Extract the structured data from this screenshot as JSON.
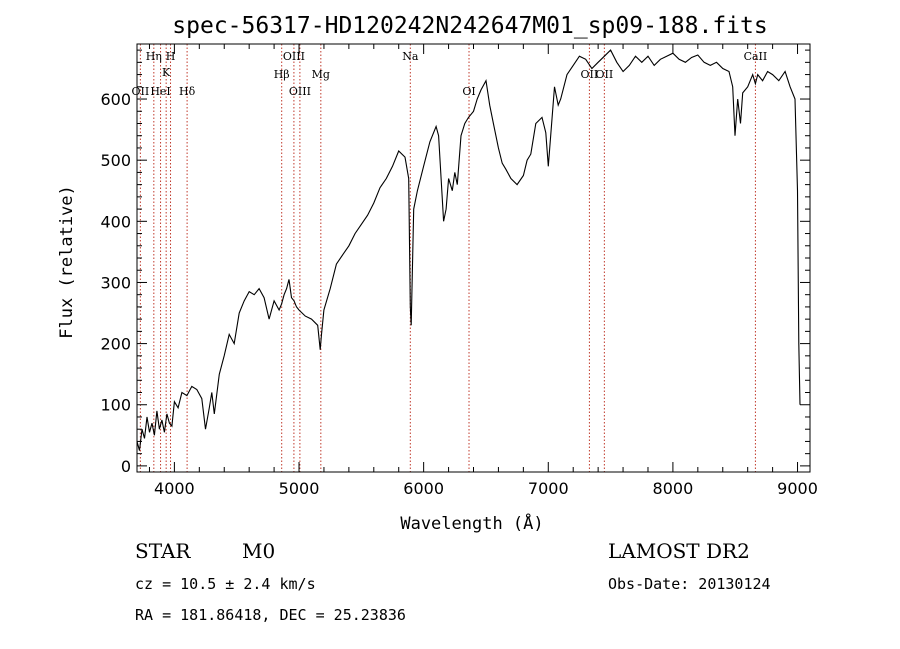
{
  "chart_data": {
    "type": "line",
    "title": "spec-56317-HD120242N242647M01_sp09-188.fits",
    "xlabel": "Wavelength (Å)",
    "ylabel": "Flux (relative)",
    "xlim": [
      3700,
      9100
    ],
    "ylim": [
      -10,
      690
    ],
    "x_ticks": [
      4000,
      5000,
      6000,
      7000,
      8000,
      9000
    ],
    "y_ticks": [
      0,
      100,
      200,
      300,
      400,
      500,
      600
    ],
    "series": [
      {
        "x": [
          3700,
          3720,
          3740,
          3760,
          3780,
          3800,
          3820,
          3840,
          3860,
          3880,
          3900,
          3920,
          3940,
          3960,
          3980,
          4000,
          4030,
          4060,
          4100,
          4140,
          4180,
          4220,
          4250,
          4280,
          4300,
          4320,
          4360,
          4400,
          4440,
          4480,
          4520,
          4560,
          4600,
          4640,
          4680,
          4720,
          4760,
          4800,
          4840,
          4860,
          4880,
          4900,
          4920,
          4940,
          4960,
          4980,
          5000,
          5050,
          5100,
          5150,
          5170,
          5180,
          5200,
          5250,
          5300,
          5350,
          5400,
          5450,
          5500,
          5550,
          5600,
          5650,
          5700,
          5750,
          5800,
          5850,
          5880,
          5893,
          5900,
          5920,
          5950,
          6000,
          6050,
          6100,
          6120,
          6140,
          6160,
          6180,
          6200,
          6230,
          6250,
          6270,
          6300,
          6330,
          6360,
          6400,
          6430,
          6460,
          6500,
          6530,
          6560,
          6600,
          6630,
          6660,
          6700,
          6750,
          6800,
          6830,
          6860,
          6900,
          6950,
          6980,
          7000,
          7050,
          7080,
          7100,
          7150,
          7200,
          7250,
          7300,
          7350,
          7400,
          7450,
          7500,
          7550,
          7600,
          7650,
          7700,
          7750,
          7800,
          7850,
          7900,
          7950,
          8000,
          8050,
          8100,
          8150,
          8200,
          8250,
          8300,
          8350,
          8400,
          8450,
          8480,
          8498,
          8520,
          8542,
          8560,
          8600,
          8640,
          8662,
          8680,
          8720,
          8760,
          8800,
          8850,
          8900,
          8940,
          8980,
          9000,
          9010,
          9020
        ],
        "values": [
          40,
          25,
          60,
          45,
          80,
          55,
          70,
          50,
          90,
          60,
          75,
          55,
          85,
          70,
          65,
          105,
          95,
          120,
          115,
          130,
          125,
          110,
          60,
          95,
          120,
          85,
          150,
          180,
          215,
          200,
          250,
          270,
          285,
          280,
          290,
          275,
          240,
          270,
          255,
          265,
          280,
          290,
          305,
          275,
          270,
          260,
          255,
          245,
          240,
          230,
          190,
          215,
          255,
          290,
          330,
          345,
          360,
          380,
          395,
          410,
          430,
          455,
          470,
          490,
          515,
          505,
          470,
          260,
          230,
          420,
          450,
          490,
          530,
          555,
          540,
          470,
          400,
          420,
          470,
          450,
          480,
          460,
          540,
          560,
          570,
          580,
          600,
          615,
          630,
          590,
          560,
          520,
          495,
          485,
          470,
          460,
          475,
          500,
          510,
          560,
          570,
          545,
          490,
          620,
          590,
          600,
          640,
          655,
          670,
          665,
          650,
          660,
          670,
          680,
          660,
          645,
          655,
          670,
          660,
          670,
          655,
          665,
          670,
          675,
          665,
          660,
          668,
          672,
          660,
          655,
          660,
          650,
          645,
          620,
          540,
          600,
          560,
          610,
          620,
          640,
          625,
          640,
          630,
          645,
          640,
          630,
          645,
          620,
          600,
          450,
          200,
          100
        ]
      }
    ],
    "lines": [
      {
        "label": "OII",
        "x": 3727,
        "row": 3
      },
      {
        "label": "Hη",
        "x": 3835,
        "row": 0
      },
      {
        "label": "HeI",
        "x": 3889,
        "row": 3
      },
      {
        "label": "K",
        "x": 3934,
        "row": 1
      },
      {
        "label": "H",
        "x": 3969,
        "row": 0
      },
      {
        "label": "Hδ",
        "x": 4102,
        "row": 3
      },
      {
        "label": "Hβ",
        "x": 4861,
        "row": 2
      },
      {
        "label": "OIII",
        "x": 4959,
        "row": 0
      },
      {
        "label": "OIII",
        "x": 5007,
        "row": 3
      },
      {
        "label": "Mg",
        "x": 5175,
        "row": 2
      },
      {
        "label": "Na",
        "x": 5893,
        "row": 0
      },
      {
        "label": "OI",
        "x": 6364,
        "row": 3
      },
      {
        "label": "OII",
        "x": 7330,
        "row": 2
      },
      {
        "label": "OII",
        "x": 7450,
        "row": 2
      },
      {
        "label": "CaII",
        "x": 8662,
        "row": 0
      }
    ]
  },
  "info": {
    "class": "STAR",
    "subclass": "M0",
    "survey": "LAMOST DR2",
    "cz": "cz = 10.5 ± 2.4 km/s",
    "obs_date": "Obs-Date: 20130124",
    "coords": "RA = 181.86418, DEC =  25.23836"
  }
}
